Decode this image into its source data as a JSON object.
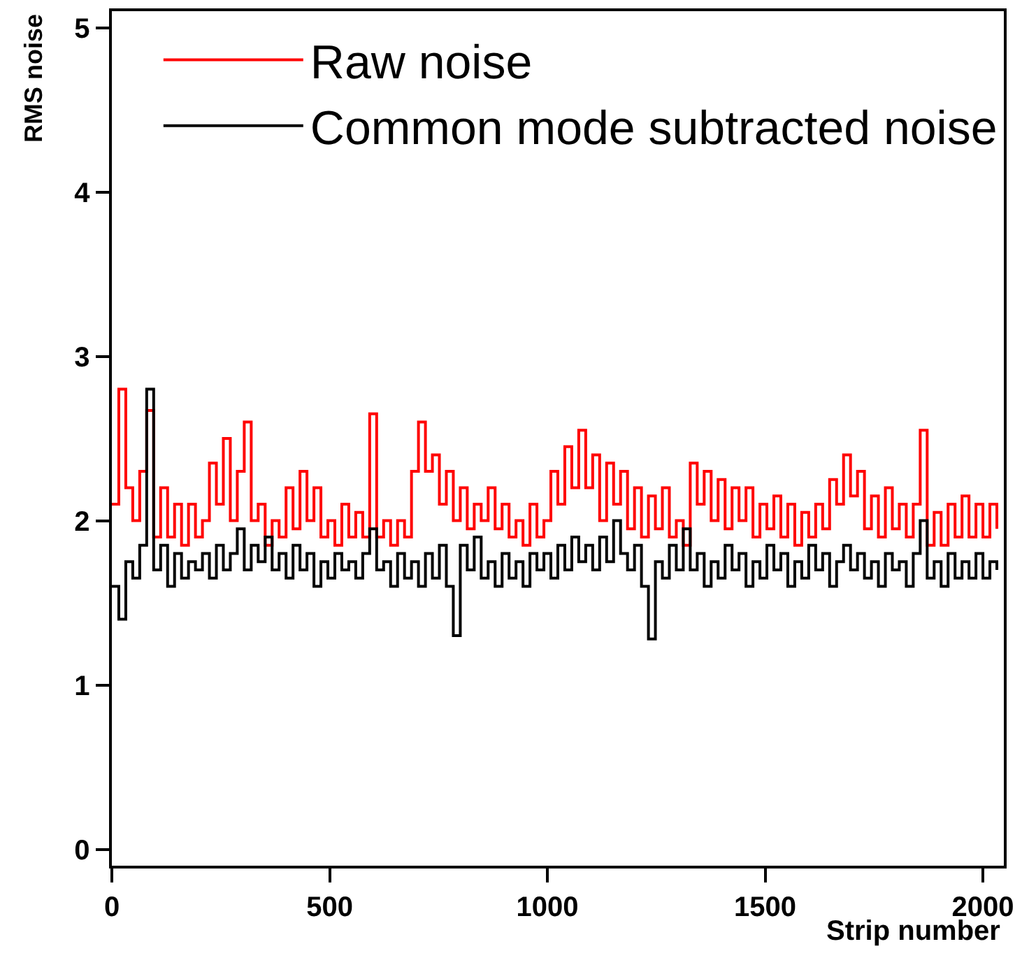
{
  "chart_data": {
    "type": "step",
    "xlabel": "Strip number",
    "ylabel": "RMS noise",
    "xlim": [
      0,
      2048
    ],
    "ylim": [
      -0.1,
      5.1
    ],
    "xticks": [
      0,
      500,
      1000,
      1500,
      2000
    ],
    "yticks": [
      0,
      1,
      2,
      3,
      4,
      5
    ],
    "grid": false,
    "legend": "top left",
    "marker": "none",
    "line_style": "solid",
    "x": [
      0,
      16,
      32,
      48,
      64,
      80,
      96,
      112,
      128,
      144,
      160,
      176,
      192,
      208,
      224,
      240,
      256,
      272,
      288,
      304,
      320,
      336,
      352,
      368,
      384,
      400,
      416,
      432,
      448,
      464,
      480,
      496,
      512,
      528,
      544,
      560,
      576,
      592,
      608,
      624,
      640,
      656,
      672,
      688,
      704,
      720,
      736,
      752,
      768,
      784,
      800,
      816,
      832,
      848,
      864,
      880,
      896,
      912,
      928,
      944,
      960,
      976,
      992,
      1008,
      1024,
      1040,
      1056,
      1072,
      1088,
      1104,
      1120,
      1136,
      1152,
      1168,
      1184,
      1200,
      1216,
      1232,
      1248,
      1264,
      1280,
      1296,
      1312,
      1328,
      1344,
      1360,
      1376,
      1392,
      1408,
      1424,
      1440,
      1456,
      1472,
      1488,
      1504,
      1520,
      1536,
      1552,
      1568,
      1584,
      1600,
      1616,
      1632,
      1648,
      1664,
      1680,
      1696,
      1712,
      1728,
      1744,
      1760,
      1776,
      1792,
      1808,
      1824,
      1840,
      1856,
      1872,
      1888,
      1904,
      1920,
      1936,
      1952,
      1968,
      1984,
      2000,
      2016,
      2032
    ],
    "series": [
      {
        "name": "Raw noise",
        "color": "#ff0000",
        "values": [
          2.1,
          2.8,
          2.2,
          2.0,
          2.3,
          2.67,
          1.9,
          2.2,
          1.9,
          2.1,
          1.85,
          2.1,
          1.9,
          2.0,
          2.35,
          2.1,
          2.5,
          2.0,
          2.3,
          2.6,
          2.0,
          2.1,
          1.85,
          2.0,
          1.9,
          2.2,
          1.95,
          2.3,
          2.0,
          2.2,
          1.9,
          2.0,
          1.85,
          2.1,
          1.9,
          2.05,
          1.9,
          2.65,
          1.9,
          2.0,
          1.85,
          2.0,
          1.9,
          2.3,
          2.6,
          2.3,
          2.4,
          2.1,
          2.3,
          2.0,
          2.2,
          1.95,
          2.1,
          2.0,
          2.2,
          1.95,
          2.1,
          1.9,
          2.0,
          1.85,
          2.1,
          1.9,
          2.0,
          2.3,
          2.1,
          2.45,
          2.2,
          2.55,
          2.2,
          2.4,
          2.0,
          2.35,
          2.1,
          2.3,
          1.95,
          2.2,
          1.9,
          2.15,
          1.95,
          2.2,
          1.9,
          2.0,
          1.85,
          2.35,
          2.1,
          2.3,
          2.0,
          2.25,
          1.95,
          2.2,
          2.0,
          2.2,
          1.9,
          2.1,
          1.95,
          2.15,
          1.9,
          2.1,
          1.85,
          2.05,
          1.9,
          2.1,
          1.95,
          2.25,
          2.1,
          2.4,
          2.15,
          2.3,
          1.95,
          2.15,
          1.9,
          2.2,
          1.95,
          2.1,
          1.9,
          2.1,
          2.55,
          1.85,
          2.05,
          1.85,
          2.1,
          1.9,
          2.15,
          1.9,
          2.1,
          1.9,
          2.1,
          1.95
        ]
      },
      {
        "name": "Common mode subtracted noise",
        "color": "#000000",
        "values": [
          1.6,
          1.4,
          1.75,
          1.65,
          1.85,
          2.8,
          1.7,
          1.85,
          1.6,
          1.8,
          1.65,
          1.75,
          1.7,
          1.8,
          1.65,
          1.85,
          1.7,
          1.8,
          1.95,
          1.7,
          1.85,
          1.75,
          1.9,
          1.7,
          1.8,
          1.65,
          1.85,
          1.7,
          1.8,
          1.6,
          1.75,
          1.65,
          1.8,
          1.7,
          1.75,
          1.65,
          1.8,
          1.95,
          1.7,
          1.75,
          1.6,
          1.8,
          1.65,
          1.75,
          1.6,
          1.8,
          1.65,
          1.85,
          1.6,
          1.3,
          1.85,
          1.7,
          1.9,
          1.65,
          1.75,
          1.6,
          1.8,
          1.65,
          1.75,
          1.6,
          1.8,
          1.7,
          1.8,
          1.65,
          1.85,
          1.7,
          1.9,
          1.75,
          1.85,
          1.7,
          1.9,
          1.75,
          2.0,
          1.8,
          1.7,
          1.85,
          1.6,
          1.28,
          1.75,
          1.65,
          1.85,
          1.7,
          1.95,
          1.7,
          1.8,
          1.6,
          1.75,
          1.65,
          1.85,
          1.7,
          1.8,
          1.6,
          1.75,
          1.65,
          1.85,
          1.7,
          1.8,
          1.6,
          1.75,
          1.65,
          1.85,
          1.7,
          1.8,
          1.6,
          1.75,
          1.85,
          1.7,
          1.8,
          1.65,
          1.75,
          1.6,
          1.8,
          1.7,
          1.75,
          1.6,
          1.8,
          2.0,
          1.65,
          1.75,
          1.6,
          1.8,
          1.65,
          1.75,
          1.65,
          1.8,
          1.65,
          1.75,
          1.7
        ]
      }
    ]
  }
}
